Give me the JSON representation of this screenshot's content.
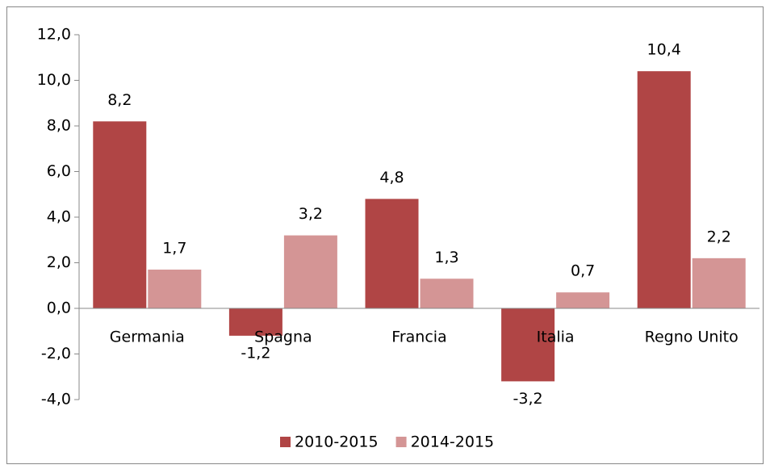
{
  "chart_data": {
    "type": "bar",
    "categories": [
      "Germania",
      "Spagna",
      "Francia",
      "Italia",
      "Regno Unito"
    ],
    "series": [
      {
        "name": "2010-2015",
        "color": "#b04545",
        "values": [
          8.2,
          -1.2,
          4.8,
          -3.2,
          10.4
        ],
        "value_labels": [
          "8,2",
          "-1,2",
          "4,8",
          "-3,2",
          "10,4"
        ]
      },
      {
        "name": "2014-2015",
        "color": "#d49595",
        "values": [
          1.7,
          3.2,
          1.3,
          0.7,
          2.2
        ],
        "value_labels": [
          "1,7",
          "3,2",
          "1,3",
          "0,7",
          "2,2"
        ]
      }
    ],
    "ylim": [
      -4,
      12
    ],
    "yticks": [
      {
        "value": -4,
        "label": "-4,0"
      },
      {
        "value": -2,
        "label": "-2,0"
      },
      {
        "value": 0,
        "label": "0,0"
      },
      {
        "value": 2,
        "label": "2,0"
      },
      {
        "value": 4,
        "label": "4,0"
      },
      {
        "value": 6,
        "label": "6,0"
      },
      {
        "value": 8,
        "label": "8,0"
      },
      {
        "value": 10,
        "label": "10,0"
      },
      {
        "value": 12,
        "label": "12,0"
      }
    ],
    "legend": "bottom"
  }
}
